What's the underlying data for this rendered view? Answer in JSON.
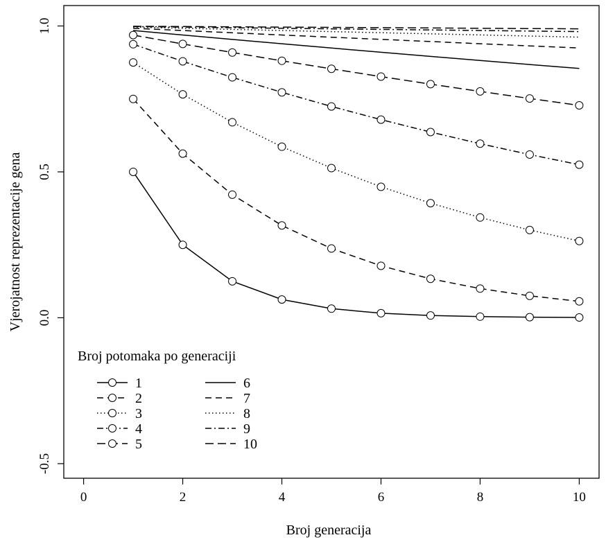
{
  "chart_data": {
    "type": "line",
    "title": "",
    "xlabel": "Broj generacija",
    "ylabel": "Vjerojatnost reprezentacije gena",
    "xlim": [
      -0.4,
      10.4
    ],
    "ylim": [
      -0.55,
      1.07
    ],
    "xticks": [
      0,
      2,
      4,
      6,
      8,
      10
    ],
    "yticks": [
      -0.5,
      0.0,
      0.5,
      1.0
    ],
    "ytick_labels": [
      "-0.5",
      "0.0",
      "0.5",
      "1.0"
    ],
    "x": [
      1,
      2,
      3,
      4,
      5,
      6,
      7,
      8,
      9,
      10
    ],
    "grid": false,
    "legend": {
      "title": "Broj potomaka po generaciji",
      "placement": "bottom-left",
      "columns": 2
    },
    "series": [
      {
        "name": "1",
        "dash": "solid",
        "marker": "circle",
        "values": [
          0.5,
          0.25,
          0.125,
          0.0625,
          0.0313,
          0.0156,
          0.0078,
          0.0039,
          0.002,
          0.001
        ]
      },
      {
        "name": "2",
        "dash": "dashed",
        "marker": "circle",
        "values": [
          0.75,
          0.5625,
          0.4219,
          0.3164,
          0.2373,
          0.178,
          0.1335,
          0.1001,
          0.0751,
          0.0563
        ]
      },
      {
        "name": "3",
        "dash": "dotted",
        "marker": "circle",
        "values": [
          0.875,
          0.7656,
          0.6699,
          0.5862,
          0.5129,
          0.4488,
          0.3927,
          0.3436,
          0.3007,
          0.2631
        ]
      },
      {
        "name": "4",
        "dash": "dashdot",
        "marker": "circle",
        "values": [
          0.9375,
          0.8789,
          0.824,
          0.7725,
          0.7242,
          0.6789,
          0.6365,
          0.5967,
          0.5594,
          0.5245
        ]
      },
      {
        "name": "5",
        "dash": "longdash",
        "marker": "circle",
        "values": [
          0.9688,
          0.9385,
          0.9091,
          0.8807,
          0.8532,
          0.8266,
          0.8007,
          0.7757,
          0.7515,
          0.728
        ]
      },
      {
        "name": "6",
        "dash": "solid",
        "marker": "none",
        "values": [
          0.9844,
          0.969,
          0.9539,
          0.939,
          0.9243,
          0.9099,
          0.8957,
          0.8817,
          0.8679,
          0.8543
        ]
      },
      {
        "name": "7",
        "dash": "dashed",
        "marker": "none",
        "values": [
          0.9922,
          0.9844,
          0.9767,
          0.9691,
          0.9615,
          0.954,
          0.9466,
          0.9392,
          0.9318,
          0.9246
        ]
      },
      {
        "name": "8",
        "dash": "dotted",
        "marker": "none",
        "values": [
          0.9961,
          0.9922,
          0.9883,
          0.9845,
          0.9806,
          0.9768,
          0.973,
          0.9692,
          0.9654,
          0.9617
        ]
      },
      {
        "name": "9",
        "dash": "dashdot",
        "marker": "none",
        "values": [
          0.998,
          0.9961,
          0.9941,
          0.9922,
          0.9903,
          0.9883,
          0.9864,
          0.9845,
          0.9826,
          0.9807
        ]
      },
      {
        "name": "10",
        "dash": "longdash",
        "marker": "none",
        "values": [
          0.999,
          0.998,
          0.9971,
          0.9961,
          0.9951,
          0.9942,
          0.9932,
          0.9922,
          0.9912,
          0.9903
        ]
      }
    ]
  }
}
